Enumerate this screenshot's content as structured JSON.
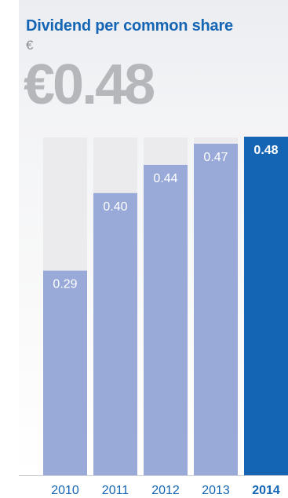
{
  "title": "Dividend per common share",
  "unit": "€",
  "headline_value": "€0.48",
  "chart_data": {
    "type": "bar",
    "categories": [
      "2010",
      "2011",
      "2012",
      "2013",
      "2014"
    ],
    "values": [
      0.29,
      0.4,
      0.44,
      0.47,
      0.48
    ],
    "value_labels": [
      "0.29",
      "0.40",
      "0.44",
      "0.47",
      "0.48"
    ],
    "highlight_index": 4,
    "title": "Dividend per common share",
    "ylabel": "€",
    "ylim": [
      0,
      0.48
    ],
    "grid": false,
    "colors": {
      "bar": "#99aad9",
      "bar_highlight": "#1565b5",
      "bar_background": "#ebebee",
      "label": "#ffffff",
      "axis_label": "#1565b5"
    }
  }
}
